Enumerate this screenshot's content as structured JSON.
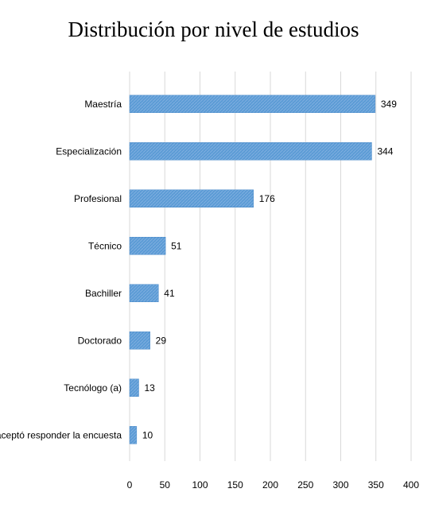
{
  "chart_data": {
    "type": "bar",
    "orientation": "horizontal",
    "title": "Distribución por nivel de estudios",
    "xlabel": "",
    "ylabel": "",
    "categories": [
      "Maestría",
      "Especialización",
      "Profesional",
      "Técnico",
      "Bachiller",
      "Doctorado",
      "Tecnólogo (a)",
      "No aceptó responder la encuesta"
    ],
    "values": [
      349,
      344,
      176,
      51,
      41,
      29,
      13,
      10
    ],
    "xlim": [
      0,
      400
    ],
    "xticks": [
      "0",
      "50",
      "100",
      "150",
      "200",
      "250",
      "300",
      "350",
      "400"
    ],
    "grid": "vertical",
    "legend": "none",
    "bar_color": "#5b9bd5",
    "grid_color": "#d9d9d9"
  }
}
